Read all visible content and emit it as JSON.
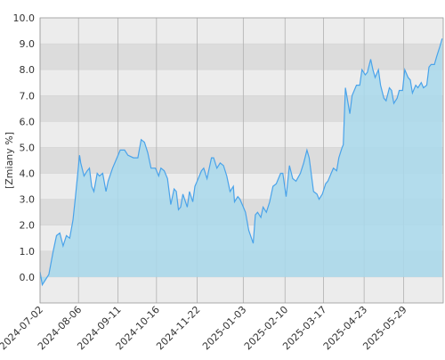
{
  "chart_data": {
    "type": "area",
    "y_label": "[Zmiany %]",
    "x": [
      "2024-07-02",
      "2024-07-04",
      "2024-07-10",
      "2024-07-14",
      "2024-07-17",
      "2024-07-20",
      "2024-07-23",
      "2024-07-26",
      "2024-07-29",
      "2024-08-01",
      "2024-08-03",
      "2024-08-07",
      "2024-08-08",
      "2024-08-11",
      "2024-08-14",
      "2024-08-16",
      "2024-08-18",
      "2024-08-20",
      "2024-08-23",
      "2024-08-25",
      "2024-08-28",
      "2024-08-31",
      "2024-09-02",
      "2024-09-06",
      "2024-09-09",
      "2024-09-13",
      "2024-09-17",
      "2024-09-20",
      "2024-09-25",
      "2024-09-29",
      "2024-10-02",
      "2024-10-05",
      "2024-10-08",
      "2024-10-11",
      "2024-10-15",
      "2024-10-18",
      "2024-10-20",
      "2024-10-23",
      "2024-10-26",
      "2024-10-29",
      "2024-11-01",
      "2024-11-03",
      "2024-11-05",
      "2024-11-07",
      "2024-11-09",
      "2024-11-13",
      "2024-11-15",
      "2024-11-18",
      "2024-11-20",
      "2024-11-22",
      "2024-11-26",
      "2024-11-28",
      "2024-12-01",
      "2024-12-05",
      "2024-12-07",
      "2024-12-10",
      "2024-12-13",
      "2024-12-16",
      "2024-12-19",
      "2024-12-22",
      "2024-12-25",
      "2024-12-26",
      "2024-12-29",
      "2024-12-31",
      "2025-01-03",
      "2025-01-05",
      "2025-01-08",
      "2025-01-12",
      "2025-01-14",
      "2025-01-16",
      "2025-01-19",
      "2025-01-21",
      "2025-01-24",
      "2025-01-27",
      "2025-01-30",
      "2025-02-02",
      "2025-02-06",
      "2025-02-08",
      "2025-02-11",
      "2025-02-14",
      "2025-02-17",
      "2025-02-20",
      "2025-02-24",
      "2025-02-27",
      "2025-03-02",
      "2025-03-04",
      "2025-03-08",
      "2025-03-11",
      "2025-03-13",
      "2025-03-16",
      "2025-03-19",
      "2025-03-21",
      "2025-03-24",
      "2025-03-26",
      "2025-03-29",
      "2025-03-31",
      "2025-04-03",
      "2025-04-04",
      "2025-04-06",
      "2025-04-08",
      "2025-04-10",
      "2025-04-12",
      "2025-04-16",
      "2025-04-19",
      "2025-04-21",
      "2025-04-24",
      "2025-04-26",
      "2025-04-29",
      "2025-05-01",
      "2025-05-03",
      "2025-05-06",
      "2025-05-08",
      "2025-05-11",
      "2025-05-13",
      "2025-05-16",
      "2025-05-18",
      "2025-05-20",
      "2025-05-23",
      "2025-05-25",
      "2025-05-28",
      "2025-05-30",
      "2025-06-02",
      "2025-06-04",
      "2025-06-06",
      "2025-06-09",
      "2025-06-11",
      "2025-06-14",
      "2025-06-16",
      "2025-06-19",
      "2025-06-21",
      "2025-06-23",
      "2025-06-26",
      "2025-06-28",
      "2025-07-01",
      "2025-07-03"
    ],
    "values": [
      0.2,
      -0.3,
      0.1,
      1.0,
      1.6,
      1.7,
      1.2,
      1.6,
      1.5,
      2.2,
      3.0,
      4.7,
      4.4,
      3.9,
      4.1,
      4.2,
      3.5,
      3.3,
      4.0,
      3.9,
      4.0,
      3.3,
      3.7,
      4.2,
      4.5,
      4.9,
      4.9,
      4.7,
      4.6,
      4.6,
      5.3,
      5.2,
      4.8,
      4.2,
      4.2,
      3.9,
      4.2,
      4.1,
      3.8,
      2.8,
      3.4,
      3.3,
      2.6,
      2.7,
      3.2,
      2.7,
      3.3,
      2.9,
      3.5,
      3.7,
      4.1,
      4.2,
      3.8,
      4.6,
      4.6,
      4.2,
      4.4,
      4.3,
      3.9,
      3.3,
      3.5,
      2.9,
      3.1,
      3.0,
      2.7,
      2.5,
      1.8,
      1.3,
      2.4,
      2.5,
      2.3,
      2.7,
      2.5,
      2.9,
      3.5,
      3.6,
      4.0,
      4.0,
      3.1,
      4.3,
      3.8,
      3.7,
      4.0,
      4.4,
      4.9,
      4.6,
      3.3,
      3.2,
      3.0,
      3.2,
      3.6,
      3.7,
      4.0,
      4.2,
      4.1,
      4.6,
      5.0,
      5.1,
      7.3,
      6.8,
      6.3,
      7.0,
      7.4,
      7.4,
      8.0,
      7.8,
      7.9,
      8.4,
      8.0,
      7.7,
      8.0,
      7.4,
      6.9,
      6.8,
      7.3,
      7.2,
      6.7,
      6.9,
      7.2,
      7.2,
      8.0,
      7.7,
      7.6,
      7.1,
      7.4,
      7.3,
      7.5,
      7.3,
      7.4,
      8.1,
      8.2,
      8.2,
      8.5,
      8.9,
      9.2
    ],
    "color": "#4aa3ea",
    "fill_color": "#a9d9ec",
    "xlim": [
      "2024-07-02",
      "2025-07-04"
    ],
    "xticks": [
      "2024-07-02",
      "2024-08-06",
      "2024-09-11",
      "2024-10-16",
      "2024-11-22",
      "2025-01-03",
      "2025-02-10",
      "2025-03-17",
      "2025-04-23",
      "2025-05-29"
    ],
    "ylim": [
      -1,
      10
    ],
    "yticks": [
      {
        "value": 0,
        "label": "0.0"
      },
      {
        "value": 1,
        "label": "1.0"
      },
      {
        "value": 2,
        "label": "2.0"
      },
      {
        "value": 3,
        "label": "3.0"
      },
      {
        "value": 4,
        "label": "4.0"
      },
      {
        "value": 5,
        "label": "5.0"
      },
      {
        "value": 6,
        "label": "6.0"
      },
      {
        "value": 7,
        "label": "7.0"
      },
      {
        "value": 8,
        "label": "8.0"
      },
      {
        "value": 9,
        "label": "9.0"
      },
      {
        "value": 10,
        "label": "10.0"
      }
    ],
    "grid": true
  }
}
